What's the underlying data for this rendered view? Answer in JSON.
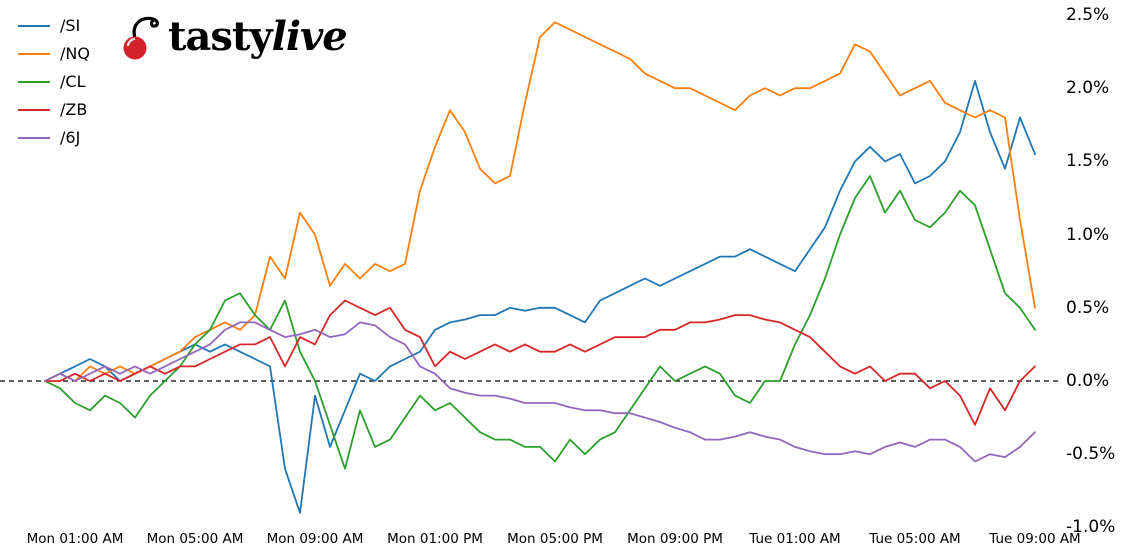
{
  "logo": {
    "brand_tasty": "tasty",
    "brand_live": "live",
    "cherry_color": "#d1212b",
    "stem_color": "#000000"
  },
  "chart_data": {
    "type": "line",
    "title": "",
    "description": "Intraday percentage performance of five futures contracts from Monday pre-market through Tuesday morning",
    "grid": false,
    "legend_position": "upper left",
    "x_start_hour": 0,
    "x_step_hours": 0.5,
    "x_axis": {
      "ticks": [
        {
          "hour": 1,
          "label": "Mon 01:00 AM"
        },
        {
          "hour": 5,
          "label": "Mon 05:00 AM"
        },
        {
          "hour": 9,
          "label": "Mon 09:00 AM"
        },
        {
          "hour": 13,
          "label": "Mon 01:00 PM"
        },
        {
          "hour": 17,
          "label": "Mon 05:00 PM"
        },
        {
          "hour": 21,
          "label": "Mon 09:00 PM"
        },
        {
          "hour": 25,
          "label": "Tue 01:00 AM"
        },
        {
          "hour": 29,
          "label": "Tue 05:00 AM"
        },
        {
          "hour": 33,
          "label": "Tue 09:00 AM"
        }
      ]
    },
    "y_axis": {
      "unit": "%",
      "ylim": [
        -1.0,
        2.5
      ],
      "ticks": [
        {
          "value": 2.5,
          "label": "2.5%"
        },
        {
          "value": 2.0,
          "label": "2.0%"
        },
        {
          "value": 1.5,
          "label": "1.5%"
        },
        {
          "value": 1.0,
          "label": "1.0%"
        },
        {
          "value": 0.5,
          "label": "0.5%"
        },
        {
          "value": 0.0,
          "label": "0.0%"
        },
        {
          "value": -0.5,
          "label": "-0.5%"
        },
        {
          "value": -1.0,
          "label": "-1.0%"
        }
      ]
    },
    "zero_line": {
      "value": 0.0,
      "style": "dashed",
      "color": "#000000"
    },
    "series": [
      {
        "name": "/SI",
        "color": "#1f77b4",
        "values": [
          0.0,
          0.05,
          0.1,
          0.15,
          0.1,
          0.0,
          0.05,
          0.1,
          0.15,
          0.2,
          0.25,
          0.2,
          0.25,
          0.2,
          0.15,
          0.1,
          -0.6,
          -0.9,
          -0.1,
          -0.45,
          -0.2,
          0.05,
          0.0,
          0.1,
          0.15,
          0.2,
          0.35,
          0.4,
          0.42,
          0.45,
          0.45,
          0.5,
          0.48,
          0.5,
          0.5,
          0.45,
          0.4,
          0.55,
          0.6,
          0.65,
          0.7,
          0.65,
          0.7,
          0.75,
          0.8,
          0.85,
          0.85,
          0.9,
          0.85,
          0.8,
          0.75,
          0.9,
          1.05,
          1.3,
          1.5,
          1.6,
          1.5,
          1.55,
          1.35,
          1.4,
          1.5,
          1.7,
          2.05,
          1.7,
          1.45,
          1.8,
          1.55
        ]
      },
      {
        "name": "/NQ",
        "color": "#ff7f0e",
        "values": [
          0.0,
          0.05,
          0.0,
          0.1,
          0.05,
          0.1,
          0.05,
          0.1,
          0.15,
          0.2,
          0.3,
          0.35,
          0.4,
          0.35,
          0.45,
          0.85,
          0.7,
          1.15,
          1.0,
          0.65,
          0.8,
          0.7,
          0.8,
          0.75,
          0.8,
          1.3,
          1.6,
          1.85,
          1.7,
          1.45,
          1.35,
          1.4,
          1.9,
          2.35,
          2.45,
          2.4,
          2.35,
          2.3,
          2.25,
          2.2,
          2.1,
          2.05,
          2.0,
          2.0,
          1.95,
          1.9,
          1.85,
          1.95,
          2.0,
          1.95,
          2.0,
          2.0,
          2.05,
          2.1,
          2.3,
          2.25,
          2.1,
          1.95,
          2.0,
          2.05,
          1.9,
          1.85,
          1.8,
          1.85,
          1.8,
          1.1,
          0.5
        ]
      },
      {
        "name": "/CL",
        "color": "#2ca02c",
        "values": [
          0.0,
          -0.05,
          -0.15,
          -0.2,
          -0.1,
          -0.15,
          -0.25,
          -0.1,
          0.0,
          0.1,
          0.25,
          0.35,
          0.55,
          0.6,
          0.45,
          0.35,
          0.55,
          0.2,
          0.0,
          -0.3,
          -0.6,
          -0.2,
          -0.45,
          -0.4,
          -0.25,
          -0.1,
          -0.2,
          -0.15,
          -0.25,
          -0.35,
          -0.4,
          -0.4,
          -0.45,
          -0.45,
          -0.55,
          -0.4,
          -0.5,
          -0.4,
          -0.35,
          -0.2,
          -0.05,
          0.1,
          0.0,
          0.05,
          0.1,
          0.05,
          -0.1,
          -0.15,
          0.0,
          0.0,
          0.25,
          0.45,
          0.7,
          1.0,
          1.25,
          1.4,
          1.15,
          1.3,
          1.1,
          1.05,
          1.15,
          1.3,
          1.2,
          0.9,
          0.6,
          0.5,
          0.35
        ]
      },
      {
        "name": "/ZB",
        "color": "#d62728",
        "values": [
          0.0,
          0.0,
          0.05,
          0.0,
          0.05,
          0.0,
          0.05,
          0.1,
          0.05,
          0.1,
          0.1,
          0.15,
          0.2,
          0.25,
          0.25,
          0.3,
          0.1,
          0.3,
          0.25,
          0.45,
          0.55,
          0.5,
          0.45,
          0.5,
          0.35,
          0.3,
          0.1,
          0.2,
          0.15,
          0.2,
          0.25,
          0.2,
          0.25,
          0.2,
          0.2,
          0.25,
          0.2,
          0.25,
          0.3,
          0.3,
          0.3,
          0.35,
          0.35,
          0.4,
          0.4,
          0.42,
          0.45,
          0.45,
          0.42,
          0.4,
          0.35,
          0.3,
          0.2,
          0.1,
          0.05,
          0.1,
          0.0,
          0.05,
          0.05,
          -0.05,
          0.0,
          -0.1,
          -0.3,
          -0.05,
          -0.2,
          0.0,
          0.1
        ]
      },
      {
        "name": "/6J",
        "color": "#9467bd",
        "values": [
          0.0,
          0.05,
          0.0,
          0.05,
          0.1,
          0.05,
          0.1,
          0.05,
          0.1,
          0.15,
          0.2,
          0.25,
          0.35,
          0.4,
          0.4,
          0.35,
          0.3,
          0.32,
          0.35,
          0.3,
          0.32,
          0.4,
          0.38,
          0.3,
          0.25,
          0.1,
          0.05,
          -0.05,
          -0.08,
          -0.1,
          -0.1,
          -0.12,
          -0.15,
          -0.15,
          -0.15,
          -0.18,
          -0.2,
          -0.2,
          -0.22,
          -0.22,
          -0.25,
          -0.28,
          -0.32,
          -0.35,
          -0.4,
          -0.4,
          -0.38,
          -0.35,
          -0.38,
          -0.4,
          -0.45,
          -0.48,
          -0.5,
          -0.5,
          -0.48,
          -0.5,
          -0.45,
          -0.42,
          -0.45,
          -0.4,
          -0.4,
          -0.45,
          -0.55,
          -0.5,
          -0.52,
          -0.45,
          -0.35
        ]
      }
    ]
  }
}
